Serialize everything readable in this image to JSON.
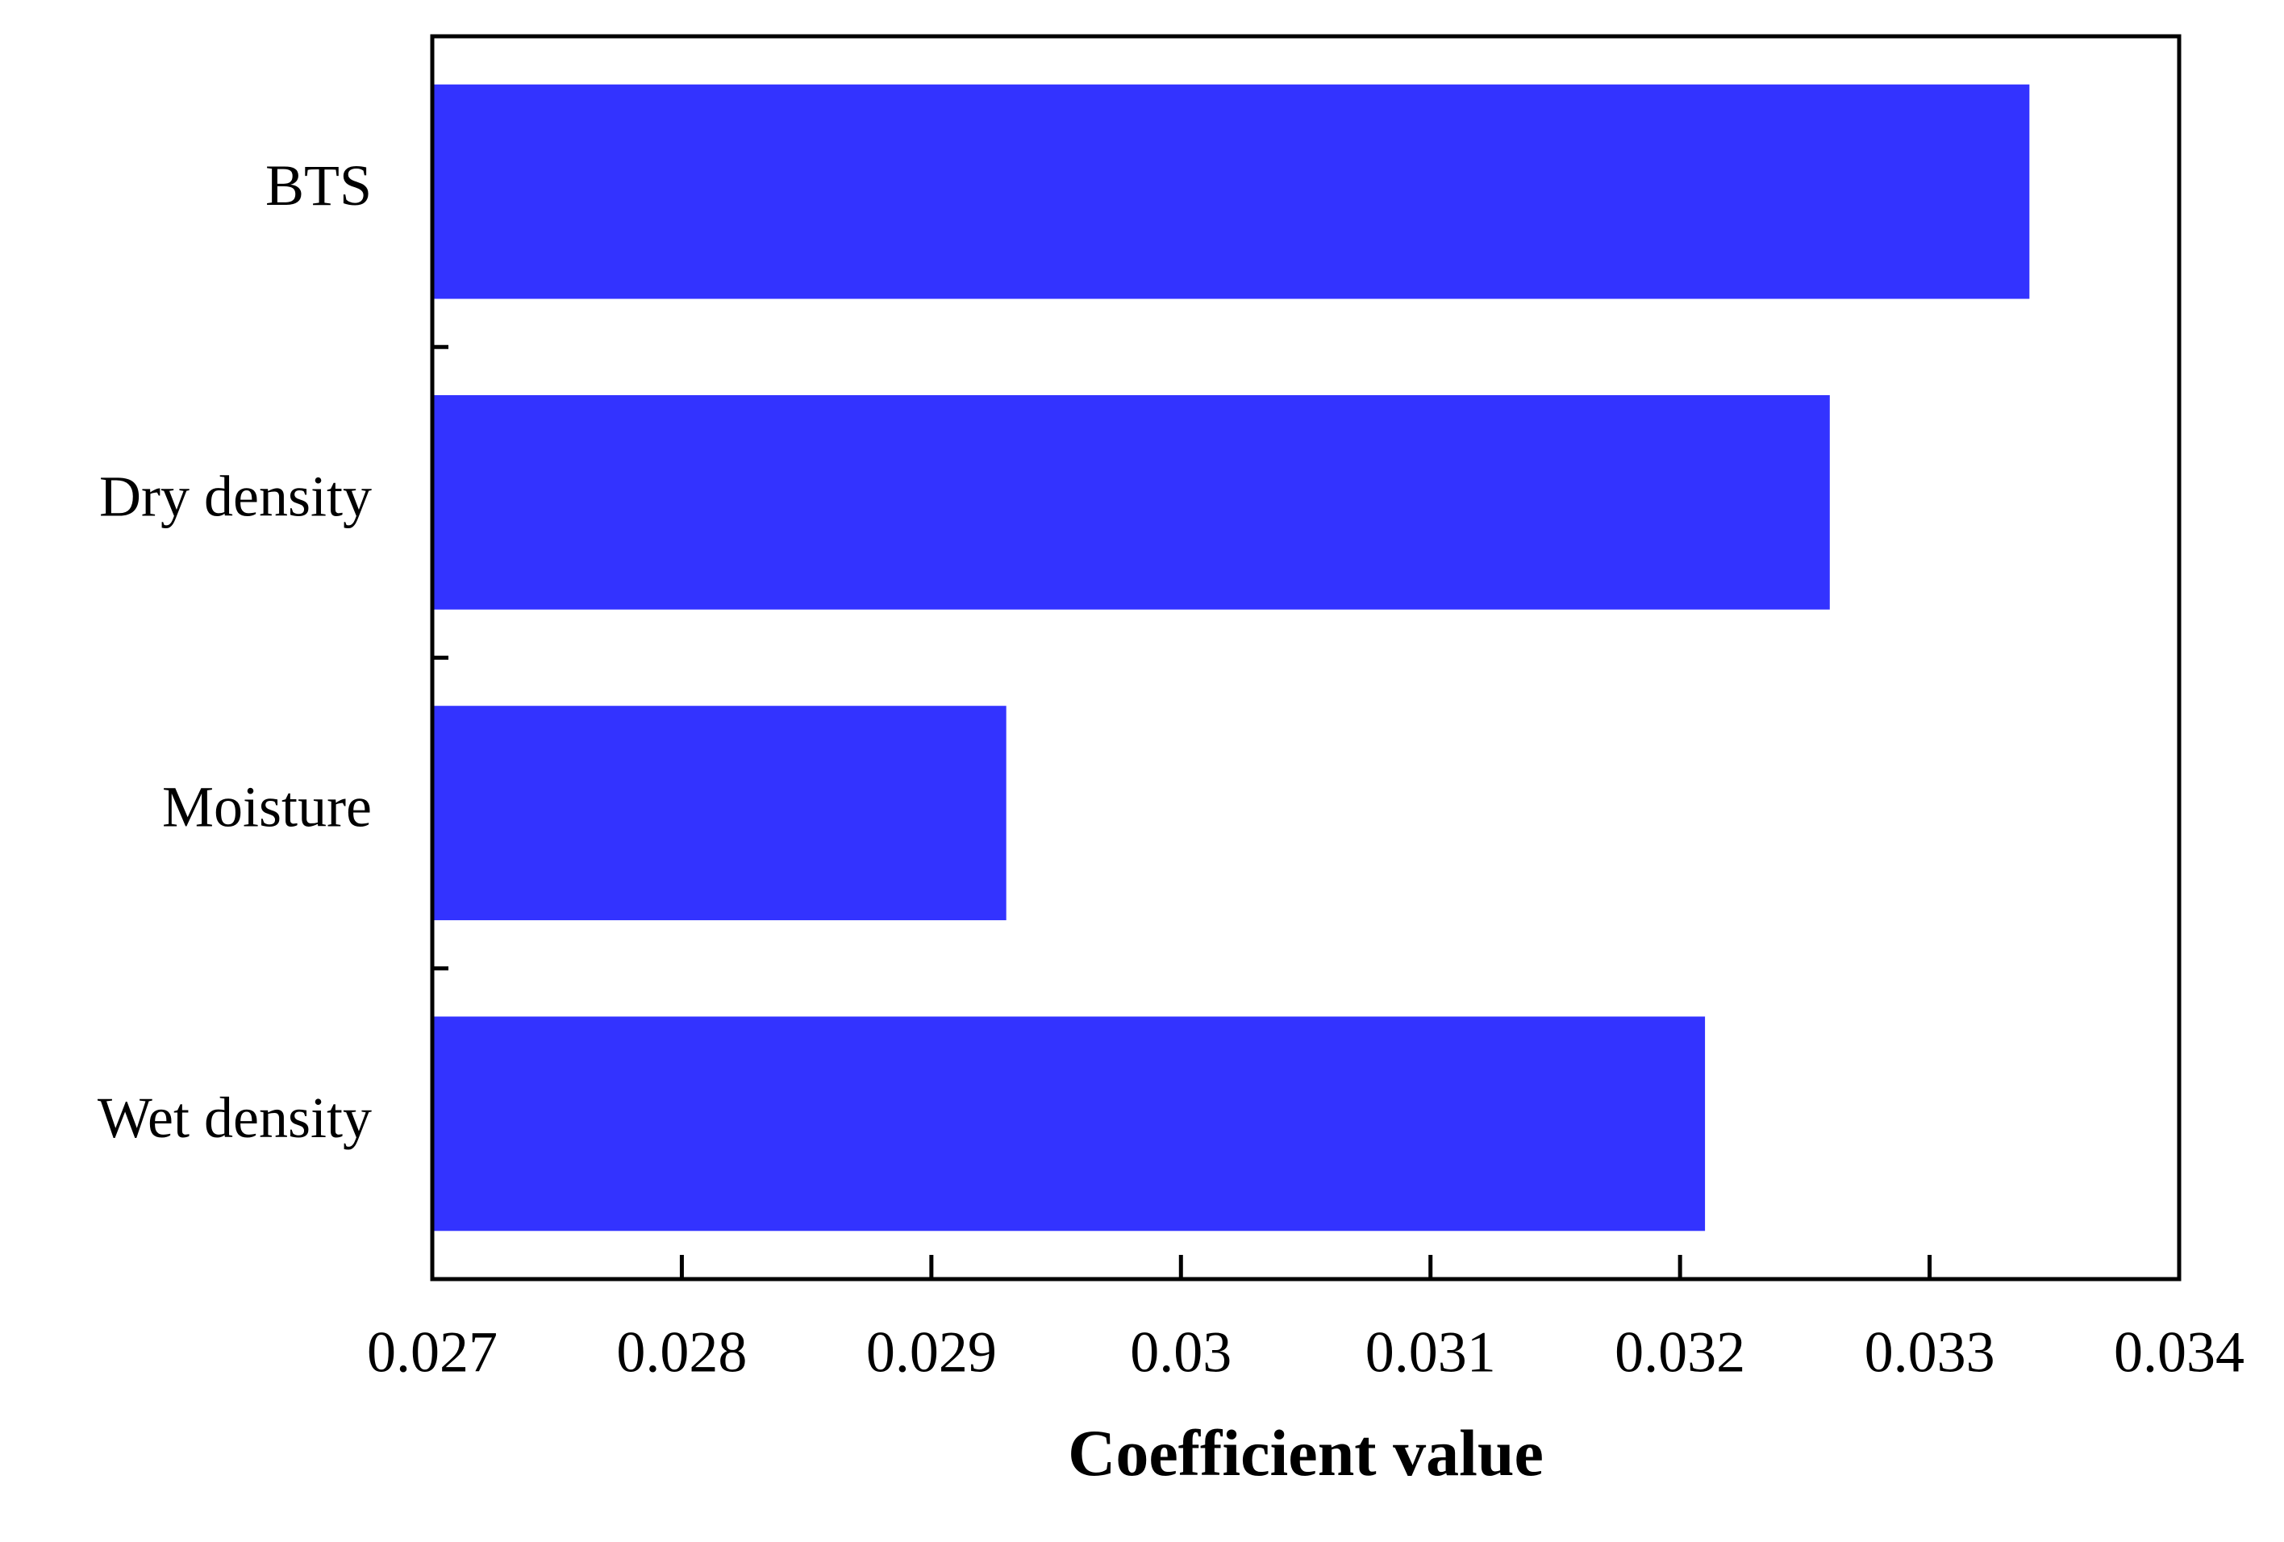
{
  "chart_data": {
    "type": "barh",
    "x_label": "Coefficient value",
    "categories": [
      "BTS",
      "Dry density",
      "Moisture",
      "Wet density"
    ],
    "values": [
      0.0334,
      0.0326,
      0.0293,
      0.0321
    ],
    "color": "#3333ff",
    "xlim": [
      0.027,
      0.034
    ],
    "xticks": [
      0.027,
      0.028,
      0.029,
      0.03,
      0.031,
      0.032,
      0.033,
      0.034
    ]
  }
}
